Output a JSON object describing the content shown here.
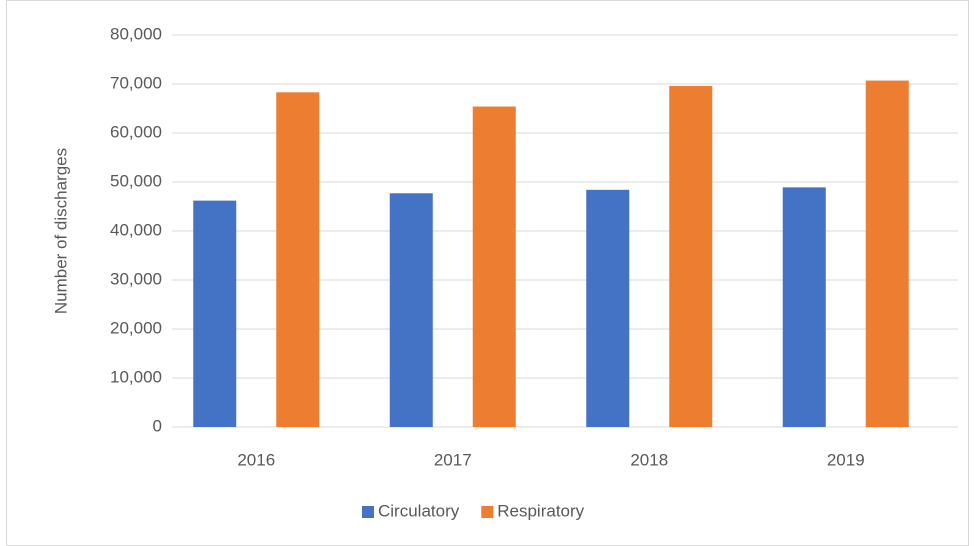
{
  "chart_data": {
    "type": "bar",
    "y_label": "Number of discharges",
    "categories": [
      "2016",
      "2017",
      "2018",
      "2019"
    ],
    "series": [
      {
        "name": "Circulatory",
        "color": "#4472c4",
        "values": [
          46200,
          47700,
          48400,
          48900
        ]
      },
      {
        "name": "Respiratory",
        "color": "#ed7d31",
        "values": [
          68300,
          65400,
          69600,
          70700
        ]
      }
    ],
    "ylim": [
      0,
      80000
    ],
    "yticks": [
      0,
      {
        "value": 10000,
        "label": "10,000"
      },
      {
        "value": 20000,
        "label": "20,000"
      },
      {
        "value": 30000,
        "label": "30,000"
      },
      {
        "value": 40000,
        "label": "40,000"
      },
      {
        "value": 50000,
        "label": "50,000"
      },
      {
        "value": 60000,
        "label": "60,000"
      },
      {
        "value": 70000,
        "label": "70,000"
      },
      {
        "value": 80000,
        "label": "80,000"
      }
    ],
    "grid": true,
    "legend": "bottom"
  }
}
